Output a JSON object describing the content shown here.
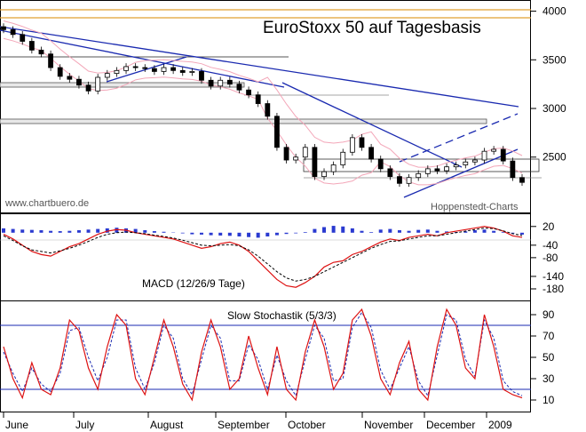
{
  "chart_data": [
    {
      "type": "candlestick",
      "title": "EuroStoxx 50 auf Tagesbasis",
      "source_left": "www.chartbuero.de",
      "source_right": "Hoppenstedt-Charts",
      "y_ticks": [
        2500,
        3000,
        3500,
        4000
      ],
      "ylim": [
        2050,
        4060
      ],
      "months": [
        "June",
        "July",
        "August",
        "September",
        "October",
        "November",
        "December",
        "2009"
      ],
      "closes": [
        3810,
        3760,
        3690,
        3600,
        3560,
        3420,
        3330,
        3300,
        3240,
        3180,
        3320,
        3360,
        3390,
        3430,
        3420,
        3410,
        3380,
        3420,
        3390,
        3370,
        3380,
        3290,
        3230,
        3290,
        3250,
        3190,
        3140,
        3050,
        2920,
        2600,
        2470,
        2500,
        2600,
        2300,
        2350,
        2420,
        2550,
        2700,
        2600,
        2480,
        2380,
        2300,
        2230,
        2290,
        2330,
        2380,
        2360,
        2400,
        2420,
        2450,
        2470,
        2560,
        2580,
        2460,
        2290,
        2240
      ]
    },
    {
      "type": "bar+line",
      "title": "MACD (12/26/9 Tage)",
      "y_ticks": [
        20,
        -40,
        -80,
        -140,
        -180
      ],
      "ylim": [
        -200,
        45
      ],
      "histogram": [
        14,
        12,
        10,
        9,
        8,
        6,
        5,
        6,
        8,
        10,
        12,
        14,
        16,
        14,
        12,
        8,
        5,
        3,
        1,
        -2,
        -5,
        -6,
        -8,
        -9,
        -10,
        -12,
        -14,
        -16,
        -12,
        -8,
        -4,
        -2,
        2,
        12,
        18,
        22,
        20,
        14,
        6,
        2,
        10,
        12,
        8,
        6,
        9,
        10,
        6,
        4,
        2,
        4,
        8,
        10,
        6,
        2,
        -2,
        -6
      ],
      "macd": [
        -5,
        -20,
        -40,
        -60,
        -70,
        -75,
        -60,
        -45,
        -35,
        -20,
        -5,
        5,
        10,
        8,
        0,
        -5,
        -10,
        -15,
        -20,
        -30,
        -40,
        -50,
        -45,
        -35,
        -30,
        -40,
        -60,
        -90,
        -120,
        -150,
        -170,
        -175,
        -160,
        -140,
        -110,
        -95,
        -90,
        -70,
        -60,
        -45,
        -30,
        -20,
        -25,
        -15,
        -10,
        -5,
        -10,
        0,
        5,
        10,
        15,
        20,
        15,
        5,
        -10,
        -15
      ],
      "signal": [
        -10,
        -25,
        -42,
        -55,
        -60,
        -65,
        -58,
        -50,
        -40,
        -28,
        -15,
        -5,
        0,
        2,
        0,
        -3,
        -8,
        -12,
        -17,
        -24,
        -32,
        -40,
        -42,
        -40,
        -38,
        -42,
        -55,
        -75,
        -100,
        -125,
        -145,
        -155,
        -150,
        -140,
        -125,
        -110,
        -95,
        -80,
        -65,
        -50,
        -38,
        -28,
        -26,
        -20,
        -15,
        -10,
        -10,
        -5,
        0,
        5,
        10,
        15,
        13,
        6,
        -3,
        -9
      ]
    },
    {
      "type": "line",
      "title": "Slow Stochastik (5/3/3)",
      "y_ticks": [
        90,
        70,
        50,
        30,
        10
      ],
      "ylim": [
        0,
        100
      ],
      "upper_band": 80,
      "lower_band": 20,
      "k": [
        60,
        30,
        12,
        45,
        20,
        15,
        40,
        85,
        75,
        40,
        20,
        60,
        90,
        80,
        30,
        15,
        50,
        85,
        60,
        25,
        10,
        55,
        85,
        60,
        20,
        30,
        70,
        40,
        15,
        60,
        20,
        10,
        55,
        85,
        60,
        20,
        35,
        85,
        95,
        70,
        30,
        15,
        45,
        65,
        20,
        10,
        60,
        95,
        80,
        40,
        30,
        90,
        60,
        20,
        15,
        12
      ],
      "d": [
        55,
        35,
        18,
        40,
        25,
        18,
        35,
        75,
        78,
        50,
        28,
        50,
        85,
        85,
        40,
        20,
        45,
        80,
        68,
        30,
        15,
        48,
        80,
        68,
        28,
        28,
        62,
        48,
        20,
        52,
        28,
        14,
        48,
        80,
        68,
        28,
        30,
        78,
        92,
        78,
        38,
        20,
        40,
        60,
        28,
        14,
        52,
        90,
        85,
        48,
        32,
        85,
        68,
        28,
        18,
        14
      ]
    }
  ]
}
